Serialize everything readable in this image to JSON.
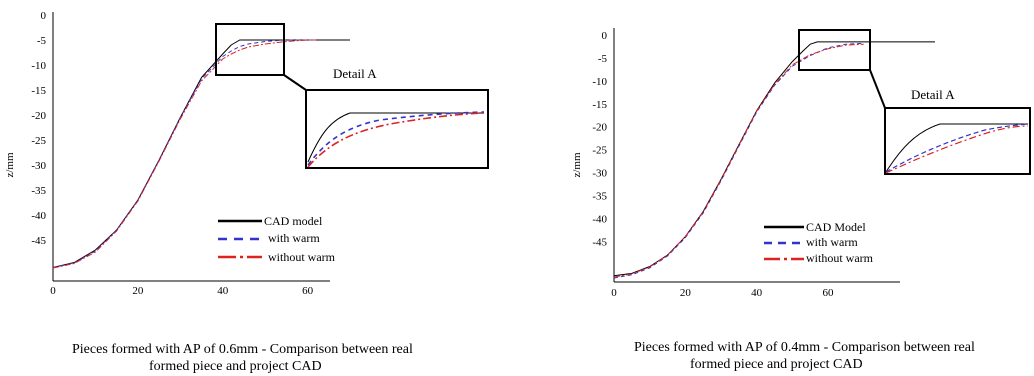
{
  "charts": [
    {
      "caption_line1": "Pieces formed with AP of 0.6mm - Comparison between real",
      "caption_line2": "formed piece and project CAD",
      "detail_label": "Detail A",
      "chart_data": {
        "type": "line",
        "ylabel": "z/mm",
        "xlabel": "",
        "xlim": [
          0,
          70
        ],
        "ylim": [
          -52,
          0
        ],
        "xticks": [
          0,
          20,
          40,
          60
        ],
        "yticks": [
          0,
          -5,
          -10,
          -15,
          -20,
          -25,
          -30,
          -35,
          -40,
          -45
        ],
        "series": [
          {
            "name": "CAD model",
            "color": "#000000",
            "style": "solid",
            "x": [
              0,
              5,
              10,
              15,
              20,
              25,
              30,
              35,
              40,
              42,
              44,
              46,
              50,
              55,
              60,
              65,
              70
            ],
            "y": [
              -50.5,
              -49.5,
              -47,
              -43,
              -37,
              -29,
              -20.5,
              -12.5,
              -7.8,
              -6,
              -5,
              -5,
              -5,
              -5,
              -5,
              -5,
              -5
            ]
          },
          {
            "name": "with warm",
            "color": "#3333cc",
            "style": "dashed",
            "x": [
              0,
              5,
              10,
              15,
              20,
              25,
              30,
              35,
              40,
              42,
              44,
              46,
              50,
              55,
              60,
              62
            ],
            "y": [
              -50.5,
              -49.6,
              -47.2,
              -43,
              -37,
              -29,
              -20.5,
              -12.8,
              -8.3,
              -7.2,
              -6.3,
              -5.8,
              -5.3,
              -5,
              -5,
              -5
            ]
          },
          {
            "name": "without warm",
            "color": "#dd2222",
            "style": "dashdot",
            "x": [
              0,
              5,
              10,
              15,
              20,
              25,
              30,
              35,
              40,
              42,
              44,
              46,
              50,
              55,
              60,
              62
            ],
            "y": [
              -50.6,
              -49.7,
              -47.4,
              -43.2,
              -37.2,
              -29.2,
              -20.8,
              -13.2,
              -8.8,
              -7.8,
              -7,
              -6.4,
              -5.8,
              -5.3,
              -5,
              -5
            ]
          }
        ]
      }
    },
    {
      "caption_line1": "Pieces formed with AP of 0.4mm - Comparison between real",
      "caption_line2": "formed piece and project CAD",
      "detail_label": "Detail A",
      "chart_data": {
        "type": "line",
        "ylabel": "z/mm",
        "xlabel": "",
        "xlim": [
          0,
          90
        ],
        "ylim": [
          -53,
          0
        ],
        "xticks": [
          0,
          20,
          40,
          60
        ],
        "yticks": [
          0,
          -5,
          -10,
          -15,
          -20,
          -25,
          -30,
          -35,
          -40,
          -45
        ],
        "series": [
          {
            "name": "CAD Model",
            "color": "#000000",
            "style": "solid",
            "x": [
              0,
              5,
              10,
              15,
              20,
              25,
              30,
              35,
              40,
              45,
              50,
              53,
              55,
              57,
              60,
              65,
              70,
              80,
              90
            ],
            "y": [
              -52.5,
              -52,
              -50.5,
              -48,
              -44,
              -38.5,
              -31.5,
              -24,
              -16.5,
              -10.5,
              -5.8,
              -3.5,
              -2,
              -1.5,
              -1.5,
              -1.5,
              -1.5,
              -1.5,
              -1.5
            ]
          },
          {
            "name": "with warm",
            "color": "#3333cc",
            "style": "dashed",
            "x": [
              0,
              5,
              10,
              15,
              20,
              25,
              30,
              35,
              40,
              45,
              50,
              55,
              60,
              65,
              70
            ],
            "y": [
              -53,
              -52.3,
              -50.8,
              -48.2,
              -44.2,
              -38.8,
              -31.8,
              -24.3,
              -16.8,
              -11,
              -6.8,
              -4.5,
              -2.8,
              -2,
              -1.8
            ]
          },
          {
            "name": "without warm",
            "color": "#dd2222",
            "style": "dashdot",
            "x": [
              0,
              5,
              10,
              15,
              20,
              25,
              30,
              35,
              40,
              45,
              50,
              55,
              60,
              65,
              70
            ],
            "y": [
              -52.8,
              -52.1,
              -50.6,
              -48,
              -44,
              -38.6,
              -31.6,
              -24.1,
              -16.6,
              -10.8,
              -6.5,
              -4.3,
              -3,
              -2.2,
              -2
            ]
          }
        ]
      }
    }
  ]
}
